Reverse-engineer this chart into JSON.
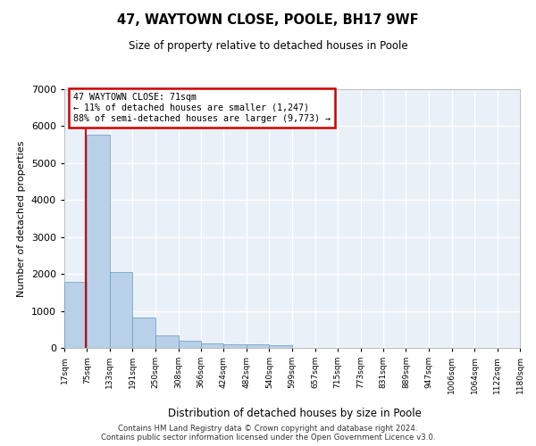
{
  "title": "47, WAYTOWN CLOSE, POOLE, BH17 9WF",
  "subtitle": "Size of property relative to detached houses in Poole",
  "xlabel": "Distribution of detached houses by size in Poole",
  "ylabel": "Number of detached properties",
  "bar_color": "#b8d0e8",
  "bar_edge_color": "#6699bb",
  "background_color": "#ffffff",
  "plot_bg_color": "#eaf0f8",
  "grid_color": "#ffffff",
  "annotation_text": "47 WAYTOWN CLOSE: 71sqm\n← 11% of detached houses are smaller (1,247)\n88% of semi-detached houses are larger (9,773) →",
  "property_size": 71,
  "footer_line1": "Contains HM Land Registry data © Crown copyright and database right 2024.",
  "footer_line2": "Contains public sector information licensed under the Open Government Licence v3.0.",
  "bin_edges": [
    17,
    75,
    133,
    191,
    250,
    308,
    366,
    424,
    482,
    540,
    599,
    657,
    715,
    773,
    831,
    889,
    947,
    1006,
    1064,
    1122,
    1180
  ],
  "bin_counts": [
    1780,
    5780,
    2060,
    820,
    340,
    185,
    115,
    105,
    95,
    70,
    0,
    0,
    0,
    0,
    0,
    0,
    0,
    0,
    0,
    0
  ],
  "ylim": [
    0,
    7000
  ],
  "yticks": [
    0,
    1000,
    2000,
    3000,
    4000,
    5000,
    6000,
    7000
  ],
  "red_line_color": "#cc0000",
  "annotation_box_color": "#cc0000"
}
